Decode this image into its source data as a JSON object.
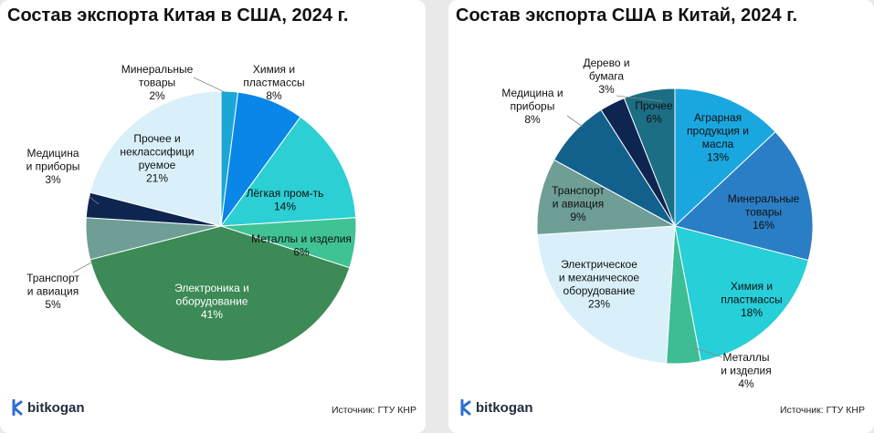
{
  "brand": {
    "name": "bitkogan",
    "logo_color": "#2f6fd0"
  },
  "source_text": "Источник: ГТУ КНР",
  "chart_data": [
    {
      "type": "pie",
      "title": "Состав экспорта Китая в США, 2024 г.",
      "categories": [
        "Минеральные товары",
        "Химия и пластмассы",
        "Лёгкая пром-ть",
        "Металлы и изделия",
        "Электроника и оборудование",
        "Транспорт и авиация",
        "Медицина и приборы",
        "Прочее и неклассифицируемое"
      ],
      "values": [
        2,
        8,
        14,
        6,
        41,
        5,
        3,
        21
      ],
      "unit": "%",
      "colors": [
        "#1aa7d6",
        "#0a86e8",
        "#2ccfd4",
        "#40c394",
        "#3c8a55",
        "#6e9e96",
        "#0e2550",
        "#d9f0fa"
      ],
      "labels": [
        [
          "Минеральные",
          "товары",
          "2%"
        ],
        [
          "Химия и",
          "пластмассы",
          "8%"
        ],
        [
          "Лёгкая пром-ть",
          "14%"
        ],
        [
          "Металлы и изделия",
          "6%"
        ],
        [
          "Электроника и",
          "оборудование",
          "41%"
        ],
        [
          "Транспорт",
          "и авиация",
          "5%"
        ],
        [
          "Медицина",
          "и приборы",
          "3%"
        ],
        [
          "Прочее и",
          "неклассифици",
          "руемое",
          "21%"
        ]
      ]
    },
    {
      "type": "pie",
      "title": "Состав экспорта США в Китай, 2024 г.",
      "categories": [
        "Аграрная продукция и масла",
        "Минеральные товары",
        "Химия и пластмассы",
        "Металлы и изделия",
        "Электрическое и механическое оборудование",
        "Транспорт и авиация",
        "Медицина и приборы",
        "Дерево и бумага",
        "Прочее"
      ],
      "values": [
        13,
        16,
        18,
        4,
        23,
        9,
        8,
        3,
        6
      ],
      "unit": "%",
      "colors": [
        "#1aa7e0",
        "#2a7ec5",
        "#27cfd8",
        "#3dbd94",
        "#d9f0fa",
        "#6e9e96",
        "#12608c",
        "#0e2550",
        "#1b6e84"
      ],
      "labels": [
        [
          "Аграрная",
          "продукция и",
          "масла",
          "13%"
        ],
        [
          "Минеральные",
          "товары",
          "16%"
        ],
        [
          "Химия и",
          "пластмассы",
          "18%"
        ],
        [
          "Металлы",
          "и изделия",
          "4%"
        ],
        [
          "Электрическое",
          "и механическое",
          "оборудование",
          "23%"
        ],
        [
          "Транспорт",
          "и авиация",
          "9%"
        ],
        [
          "Медицина и",
          "приборы",
          "8%"
        ],
        [
          "Дерево и",
          "бумага",
          "3%"
        ],
        [
          "Прочее",
          "6%"
        ]
      ]
    }
  ]
}
